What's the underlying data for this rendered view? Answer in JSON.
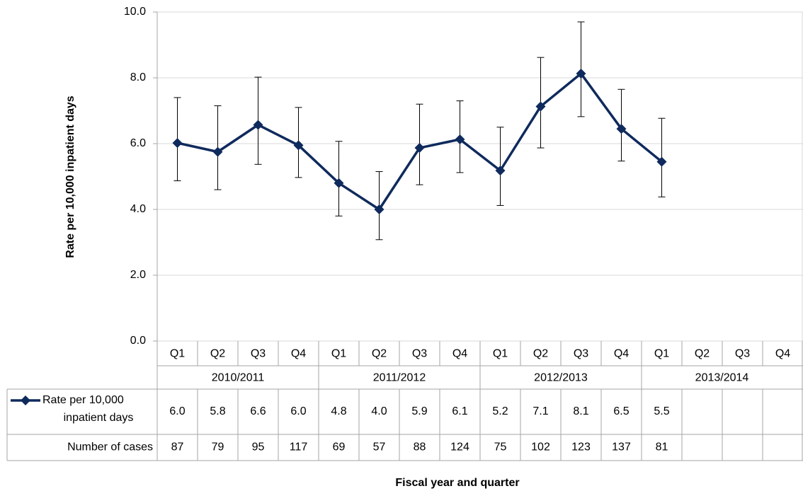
{
  "chart_data": {
    "type": "line",
    "ylabel": "Rate per 10,000 inpatient days",
    "xlabel": "Fiscal year and quarter",
    "categories": [
      "Q1",
      "Q2",
      "Q3",
      "Q4",
      "Q1",
      "Q2",
      "Q3",
      "Q4",
      "Q1",
      "Q2",
      "Q3",
      "Q4",
      "Q1",
      "Q2",
      "Q3",
      "Q4"
    ],
    "groups": [
      "2010/2011",
      "2011/2012",
      "2012/2013",
      "2013/2014"
    ],
    "ylim": [
      0,
      10
    ],
    "yticks": [
      {
        "value": 0,
        "label": "0.0"
      },
      {
        "value": 2,
        "label": "2.0"
      },
      {
        "value": 4,
        "label": "4.0"
      },
      {
        "value": 6,
        "label": "6.0"
      },
      {
        "value": 8,
        "label": "8.0"
      },
      {
        "value": 10,
        "label": "10.0"
      }
    ],
    "grid": true,
    "series": [
      {
        "name": "Rate per 10,000 inpatient days",
        "color": "#0f2a5c",
        "values": [
          6.02,
          5.75,
          6.57,
          5.95,
          4.8,
          4.0,
          5.87,
          6.13,
          5.18,
          7.13,
          8.13,
          6.45,
          5.45,
          null,
          null,
          null
        ],
        "value_labels": [
          "6.0",
          "5.8",
          "6.6",
          "6.0",
          "4.8",
          "4.0",
          "5.9",
          "6.1",
          "5.2",
          "7.1",
          "8.1",
          "6.5",
          "5.5",
          null,
          null,
          null
        ],
        "lower": [
          4.87,
          4.6,
          5.37,
          4.97,
          3.8,
          3.08,
          4.75,
          5.12,
          4.12,
          5.87,
          6.82,
          5.47,
          4.38,
          null,
          null,
          null
        ],
        "upper": [
          7.4,
          7.15,
          8.02,
          7.1,
          6.07,
          5.15,
          7.2,
          7.3,
          6.5,
          8.62,
          9.7,
          7.65,
          6.77,
          null,
          null,
          null
        ]
      }
    ],
    "table_rows": [
      {
        "name": "Number of cases",
        "values": [
          87,
          79,
          95,
          117,
          69,
          57,
          88,
          124,
          75,
          102,
          123,
          137,
          81,
          null,
          null,
          null
        ]
      }
    ]
  }
}
